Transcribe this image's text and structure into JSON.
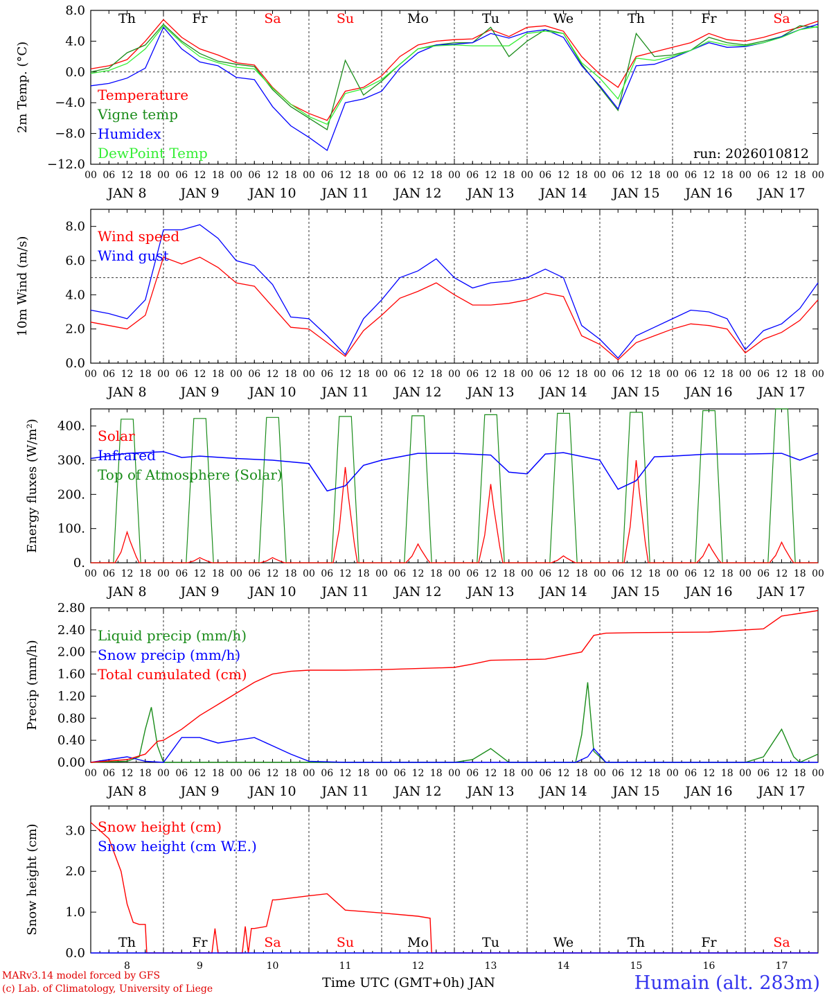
{
  "meta": {
    "run_label": "run: 2026010812",
    "credit_line_1": "MARv3.14 model forced by GFS",
    "credit_line_2": "(c) Lab. of Climatology, University of Liege",
    "station": "Humain (alt. 283m)",
    "xaxis_title": "Time UTC (GMT+0h) JAN"
  },
  "days": [
    {
      "abbr": "Th",
      "date": "JAN  8",
      "num": "8",
      "weekend": false
    },
    {
      "abbr": "Fr",
      "date": "JAN  9",
      "num": "9",
      "weekend": false
    },
    {
      "abbr": "Sa",
      "date": "JAN 10",
      "num": "10",
      "weekend": true
    },
    {
      "abbr": "Su",
      "date": "JAN 11",
      "num": "11",
      "weekend": true
    },
    {
      "abbr": "Mo",
      "date": "JAN 12",
      "num": "12",
      "weekend": false
    },
    {
      "abbr": "Tu",
      "date": "JAN 13",
      "num": "13",
      "weekend": false
    },
    {
      "abbr": "We",
      "date": "JAN 14",
      "num": "14",
      "weekend": false
    },
    {
      "abbr": "Th",
      "date": "JAN 15",
      "num": "15",
      "weekend": false
    },
    {
      "abbr": "Fr",
      "date": "JAN 16",
      "num": "16",
      "weekend": false
    },
    {
      "abbr": "Sa",
      "date": "JAN 17",
      "num": "17",
      "weekend": true
    }
  ],
  "hour_ticks": [
    "00",
    "06",
    "12",
    "18"
  ],
  "colors": {
    "red": "#ff0000",
    "green": "#1a8c1a",
    "blue": "#0000ff",
    "lightgreen": "#33ee33",
    "weekend": "#ff0000"
  },
  "chart_data": [
    {
      "type": "line",
      "id": "temp",
      "ylabel": "2m Temp. (°C)",
      "ylim": [
        -12,
        8
      ],
      "yticks": [
        "8.0",
        "4.0",
        "0.0",
        "−4.0",
        "−8.0",
        "−12.0"
      ],
      "ytick_values": [
        8,
        4,
        0,
        -4,
        -8,
        -12
      ],
      "ref_line": 0,
      "x_hours": [
        0,
        6,
        12,
        18,
        24,
        30,
        36,
        42,
        48,
        54,
        60,
        66,
        72,
        78,
        84,
        90,
        96,
        102,
        108,
        114,
        120,
        126,
        132,
        138,
        144,
        150,
        156,
        162,
        168,
        174,
        180,
        186,
        192,
        198,
        204,
        210,
        216,
        222,
        228,
        234,
        240
      ],
      "series": [
        {
          "name": "Temperature",
          "color": "red",
          "values": [
            0.4,
            0.8,
            1.6,
            4.0,
            6.8,
            4.5,
            3.0,
            2.2,
            1.2,
            0.9,
            -2.0,
            -4.2,
            -5.4,
            -6.3,
            -2.5,
            -2.0,
            -0.5,
            2.0,
            3.5,
            4.0,
            4.2,
            4.3,
            5.5,
            4.6,
            5.8,
            6.0,
            5.3,
            2.0,
            -0.3,
            -2.0,
            2.0,
            2.6,
            3.2,
            3.8,
            5.0,
            4.2,
            4.0,
            4.5,
            5.2,
            5.8,
            6.6
          ]
        },
        {
          "name": "Vigne temp",
          "color": "green",
          "values": [
            0.0,
            0.5,
            2.5,
            3.5,
            6.2,
            4.0,
            2.4,
            1.4,
            1.0,
            0.7,
            -2.3,
            -4.5,
            -6.0,
            -7.5,
            1.5,
            -3.0,
            -1.2,
            1.0,
            3.0,
            3.5,
            3.8,
            3.8,
            5.8,
            2.0,
            4.0,
            5.5,
            5.0,
            1.0,
            -2.0,
            -5.0,
            5.0,
            2.0,
            2.2,
            2.8,
            4.5,
            3.8,
            3.5,
            4.0,
            4.6,
            6.0,
            5.8
          ]
        },
        {
          "name": "Humidex",
          "color": "blue",
          "values": [
            -1.8,
            -1.5,
            -0.8,
            0.5,
            5.8,
            3.0,
            1.3,
            0.8,
            -0.7,
            -1.0,
            -4.5,
            -7.0,
            -8.5,
            -10.2,
            -4.0,
            -3.5,
            -2.5,
            0.5,
            2.5,
            3.5,
            3.6,
            3.8,
            5.0,
            4.4,
            5.2,
            5.5,
            4.5,
            0.8,
            -1.8,
            -4.8,
            0.8,
            1.0,
            1.8,
            2.8,
            3.8,
            3.2,
            3.3,
            3.8,
            4.6,
            5.5,
            6.2
          ]
        },
        {
          "name": "DewPoint Temp",
          "color": "lightgreen",
          "values": [
            -0.2,
            0.2,
            1.1,
            3.0,
            6.0,
            3.8,
            2.0,
            1.2,
            0.6,
            0.4,
            -2.1,
            -4.2,
            -5.8,
            -6.8,
            -2.8,
            -2.2,
            -1.0,
            1.0,
            3.0,
            3.4,
            3.5,
            3.4,
            3.4,
            3.4,
            5.0,
            5.3,
            5.0,
            1.2,
            -0.8,
            -3.5,
            1.8,
            1.5,
            2.0,
            2.8,
            4.0,
            3.5,
            3.4,
            3.8,
            4.5,
            5.5,
            5.9
          ]
        }
      ],
      "legend": [
        "Temperature",
        "Vigne temp",
        "Humidex",
        "DewPoint Temp"
      ]
    },
    {
      "type": "line",
      "id": "wind",
      "ylabel": "10m Wind (m/s)",
      "ylim": [
        0,
        9
      ],
      "yticks": [
        "8.0",
        "6.0",
        "4.0",
        "2.0",
        "0.0"
      ],
      "ytick_values": [
        8,
        6,
        4,
        2,
        0
      ],
      "ref_line": 5,
      "x_hours": [
        0,
        6,
        12,
        18,
        24,
        30,
        36,
        42,
        48,
        54,
        60,
        66,
        72,
        78,
        84,
        90,
        96,
        102,
        108,
        114,
        120,
        126,
        132,
        138,
        144,
        150,
        156,
        162,
        168,
        174,
        180,
        186,
        192,
        198,
        204,
        210,
        216,
        222,
        228,
        234,
        240
      ],
      "series": [
        {
          "name": "Wind speed",
          "color": "red",
          "values": [
            2.4,
            2.2,
            2.0,
            2.8,
            6.2,
            5.8,
            6.2,
            5.6,
            4.7,
            4.5,
            3.3,
            2.1,
            2.0,
            1.2,
            0.4,
            1.9,
            2.8,
            3.8,
            4.2,
            4.7,
            4.0,
            3.4,
            3.4,
            3.5,
            3.7,
            4.1,
            3.9,
            1.6,
            1.1,
            0.2,
            1.2,
            1.6,
            2.0,
            2.3,
            2.2,
            2.0,
            0.6,
            1.4,
            1.8,
            2.5,
            3.7
          ]
        },
        {
          "name": "Wind gust",
          "color": "blue",
          "values": [
            3.1,
            2.9,
            2.6,
            3.7,
            7.8,
            7.8,
            8.1,
            7.3,
            6.0,
            5.7,
            4.6,
            2.7,
            2.6,
            1.6,
            0.5,
            2.6,
            3.7,
            5.0,
            5.4,
            6.1,
            5.0,
            4.4,
            4.7,
            4.8,
            5.0,
            5.5,
            5.0,
            2.2,
            1.4,
            0.3,
            1.6,
            2.1,
            2.6,
            3.1,
            3.0,
            2.6,
            0.8,
            1.9,
            2.3,
            3.2,
            4.7
          ]
        }
      ],
      "legend": [
        "Wind speed",
        "Wind gust"
      ]
    },
    {
      "type": "line",
      "id": "energy",
      "ylabel": "Energy fluxes (W/m²)",
      "ylim": [
        0,
        450
      ],
      "yticks": [
        "400.",
        "300.",
        "200.",
        "100.",
        "0."
      ],
      "ytick_values": [
        400,
        300,
        200,
        100,
        0
      ],
      "daily_toa_peaks": [
        420,
        422,
        425,
        428,
        430,
        433,
        437,
        440,
        445,
        450
      ],
      "daily_solar_peaks": [
        90,
        15,
        15,
        280,
        55,
        230,
        20,
        300,
        55,
        60
      ],
      "infrared": {
        "x_hours": [
          0,
          12,
          24,
          30,
          36,
          48,
          60,
          72,
          78,
          84,
          90,
          96,
          108,
          120,
          132,
          138,
          144,
          150,
          156,
          168,
          174,
          180,
          186,
          192,
          204,
          216,
          228,
          234,
          240
        ],
        "values": [
          305,
          320,
          325,
          308,
          312,
          305,
          300,
          290,
          210,
          225,
          285,
          300,
          320,
          320,
          315,
          265,
          260,
          318,
          322,
          300,
          215,
          240,
          310,
          312,
          318,
          318,
          320,
          300,
          320
        ]
      },
      "series_names": {
        "solar": "Solar",
        "infrared": "Infrared",
        "toa": "Top of Atmosphere (Solar)"
      },
      "legend": [
        "Solar",
        "Infrared",
        "Top of Atmosphere (Solar)"
      ]
    },
    {
      "type": "line",
      "id": "precip",
      "ylabel": "Precip (mm/h)",
      "ylim": [
        0,
        2.8
      ],
      "yticks": [
        "2.80",
        "2.40",
        "2.00",
        "1.60",
        "1.20",
        "0.80",
        "0.40",
        "0.00"
      ],
      "ytick_values": [
        2.8,
        2.4,
        2.0,
        1.6,
        1.2,
        0.8,
        0.4,
        0.0
      ],
      "series": [
        {
          "name": "Liquid precip (mm/h)",
          "color": "green",
          "x_hours": [
            0,
            12,
            16,
            18,
            20,
            22,
            24,
            30,
            120,
            126,
            132,
            138,
            160,
            162,
            164,
            166,
            170,
            216,
            222,
            228,
            232,
            234,
            240
          ],
          "values": [
            0,
            0.02,
            0.1,
            0.6,
            1.0,
            0.3,
            0,
            0,
            0,
            0.05,
            0.25,
            0,
            0,
            0.5,
            1.45,
            0.2,
            0,
            0,
            0.1,
            0.6,
            0.1,
            0,
            0.15
          ]
        },
        {
          "name": "Snow precip (mm/h)",
          "color": "blue",
          "x_hours": [
            0,
            6,
            12,
            18,
            24,
            30,
            36,
            42,
            48,
            54,
            60,
            66,
            72,
            84,
            160,
            164,
            166,
            170,
            240
          ],
          "values": [
            0,
            0.05,
            0.1,
            0.02,
            0,
            0.45,
            0.45,
            0.35,
            0.4,
            0.45,
            0.3,
            0.15,
            0.02,
            0,
            0,
            0.1,
            0.25,
            0,
            0
          ]
        },
        {
          "name": "Total cumulated (cm)",
          "color": "red",
          "x_hours": [
            0,
            12,
            18,
            22,
            24,
            30,
            36,
            42,
            48,
            54,
            60,
            66,
            72,
            84,
            96,
            108,
            120,
            126,
            132,
            150,
            162,
            166,
            170,
            180,
            204,
            222,
            228,
            234,
            240
          ],
          "values": [
            0,
            0.05,
            0.15,
            0.38,
            0.4,
            0.6,
            0.85,
            1.05,
            1.25,
            1.45,
            1.6,
            1.65,
            1.67,
            1.67,
            1.68,
            1.7,
            1.72,
            1.78,
            1.85,
            1.87,
            2.0,
            2.3,
            2.34,
            2.35,
            2.36,
            2.42,
            2.65,
            2.7,
            2.75
          ]
        }
      ],
      "legend": [
        "Liquid precip (mm/h)",
        "Snow precip (mm/h)",
        "Total cumulated (cm)"
      ]
    },
    {
      "type": "line",
      "id": "snow",
      "ylabel": "Snow height (cm)",
      "ylim": [
        0,
        3.6
      ],
      "yticks": [
        "3.0",
        "2.0",
        "1.0",
        "0.0"
      ],
      "ytick_values": [
        3,
        2,
        1,
        0
      ],
      "series": [
        {
          "name": "Snow height (cm)",
          "color": "red",
          "x_hours": [
            0,
            6,
            10,
            12,
            14,
            16,
            18,
            18.5,
            40,
            41,
            42,
            50,
            51,
            52,
            53,
            54,
            58,
            60,
            61,
            72,
            78,
            84,
            96,
            108,
            112,
            112.5,
            240
          ],
          "values": [
            3.2,
            2.8,
            2.0,
            1.2,
            0.75,
            0.7,
            0.7,
            0,
            0,
            0.6,
            0,
            0,
            0.65,
            0,
            0.6,
            0.6,
            0.65,
            1.3,
            1.3,
            1.4,
            1.45,
            1.05,
            0.98,
            0.9,
            0.85,
            0,
            0
          ]
        },
        {
          "name": "Snow height (cm W.E.)",
          "color": "blue",
          "x_hours": [
            0,
            240
          ],
          "values": [
            0,
            0
          ]
        }
      ],
      "legend": [
        "Snow height (cm)",
        "Snow height (cm W.E.)"
      ]
    }
  ]
}
